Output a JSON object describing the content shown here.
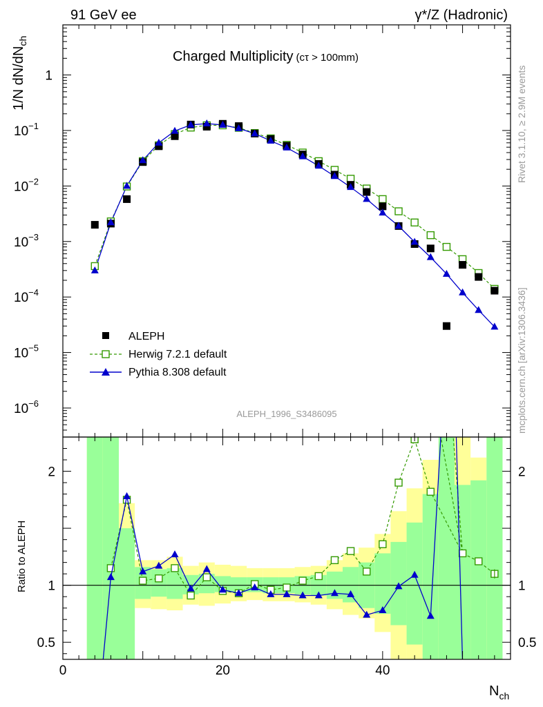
{
  "header": {
    "left": "91 GeV ee",
    "right": "γ*/Z (Hadronic)"
  },
  "side_labels": {
    "rivet": "Rivet 3.1.10, ≥ 2.9M events",
    "mcplots": "mcplots.cern.ch [arXiv:1306.3436]"
  },
  "chart_data": {
    "type": "scatter",
    "title": "Charged Multiplicity",
    "title_sub": "(cτ > 100mm)",
    "analysis_label": "ALEPH_1996_S3486095",
    "xlabel_main": "N",
    "xlabel_sub": "ch",
    "ylabel_main": "1/N dN/dN",
    "ylabel_sub": "ch",
    "ratio_ylabel": "Ratio to ALEPH",
    "xlim": [
      0,
      56
    ],
    "ylim": [
      3e-07,
      8
    ],
    "yscale": "log",
    "ratio_ylim": [
      0.35,
      2.3
    ],
    "x_ticks": [
      0,
      20,
      40
    ],
    "y_tick_labels": [
      {
        "exp": -6,
        "base": "10",
        "sup": "−6"
      },
      {
        "exp": -5,
        "base": "10",
        "sup": "−5"
      },
      {
        "exp": -4,
        "base": "10",
        "sup": "−4"
      },
      {
        "exp": -3,
        "base": "10",
        "sup": "−3"
      },
      {
        "exp": -2,
        "base": "10",
        "sup": "−2"
      },
      {
        "exp": -1,
        "base": "10",
        "sup": "−1"
      },
      {
        "exp": 0,
        "base": "1",
        "sup": ""
      }
    ],
    "ratio_ticks": [
      0.5,
      1,
      2
    ],
    "legend_placement": "lower-left",
    "series": [
      {
        "name": "ALEPH",
        "color": "#000000",
        "marker": "filled-square",
        "x": [
          4,
          6,
          8,
          10,
          12,
          14,
          16,
          18,
          20,
          22,
          24,
          26,
          28,
          30,
          32,
          34,
          36,
          38,
          40,
          42,
          44,
          46,
          48,
          50,
          52,
          54
        ],
        "y": [
          0.002,
          0.0021,
          0.0058,
          0.027,
          0.052,
          0.079,
          0.128,
          0.117,
          0.132,
          0.12,
          0.088,
          0.07,
          0.053,
          0.037,
          0.025,
          0.016,
          0.0105,
          0.0078,
          0.0043,
          0.0019,
          0.0009,
          0.00075,
          3e-05,
          0.00038,
          0.00023,
          0.00013
        ]
      },
      {
        "name": "Herwig 7.2.1 default",
        "color": "#339900",
        "marker": "open-square",
        "line": "dashed",
        "x": [
          4,
          6,
          8,
          10,
          12,
          14,
          16,
          18,
          20,
          22,
          24,
          26,
          28,
          30,
          32,
          34,
          36,
          38,
          40,
          42,
          44,
          46,
          48,
          50,
          52,
          54
        ],
        "y": [
          0.00036,
          0.0023,
          0.0098,
          0.028,
          0.054,
          0.086,
          0.113,
          0.124,
          0.124,
          0.112,
          0.09,
          0.072,
          0.055,
          0.04,
          0.028,
          0.0195,
          0.0135,
          0.009,
          0.0058,
          0.0035,
          0.0022,
          0.0013,
          0.0008,
          0.00048,
          0.00027,
          0.00014
        ]
      },
      {
        "name": "Pythia 8.308 default",
        "color": "#0000cc",
        "marker": "filled-triangle",
        "line": "solid",
        "x": [
          4,
          6,
          8,
          10,
          12,
          14,
          16,
          18,
          20,
          22,
          24,
          26,
          28,
          30,
          32,
          34,
          36,
          38,
          40,
          42,
          44,
          46,
          48,
          50,
          52,
          54
        ],
        "y": [
          0.0003,
          0.0022,
          0.01,
          0.029,
          0.06,
          0.098,
          0.126,
          0.133,
          0.126,
          0.109,
          0.088,
          0.065,
          0.049,
          0.034,
          0.023,
          0.015,
          0.0095,
          0.0058,
          0.0033,
          0.0019,
          0.00098,
          0.00052,
          0.00026,
          0.00012,
          5.8e-05,
          2.9e-05
        ]
      }
    ],
    "ratios": [
      {
        "name": "Herwig 7.2.1 default",
        "x": [
          6,
          8,
          10,
          12,
          14,
          16,
          18,
          20,
          22,
          24,
          26,
          28,
          30,
          32,
          34,
          36,
          38,
          40,
          42,
          44,
          46,
          50,
          52,
          54
        ],
        "y": [
          1.15,
          1.75,
          1.04,
          1.06,
          1.15,
          0.91,
          1.07,
          0.95,
          0.93,
          1.01,
          0.96,
          0.98,
          1.04,
          1.08,
          1.22,
          1.3,
          1.12,
          1.36,
          1.9,
          2.28,
          1.82,
          1.28,
          1.21,
          1.1
        ]
      },
      {
        "name": "Pythia 8.308 default",
        "x": [
          6,
          8,
          10,
          12,
          14,
          16,
          18,
          20,
          22,
          24,
          26,
          28,
          30,
          32,
          34,
          36,
          38,
          40,
          42,
          44,
          46
        ],
        "y": [
          1.07,
          1.78,
          1.12,
          1.17,
          1.27,
          0.97,
          1.14,
          0.96,
          0.93,
          0.98,
          0.92,
          0.92,
          0.91,
          0.91,
          0.93,
          0.92,
          0.74,
          0.78,
          0.99,
          1.09,
          0.73
        ]
      }
    ],
    "uncertainty_bands": {
      "inner_color": "#99ff99",
      "outer_color": "#ffff99",
      "bins": [
        {
          "x": [
            3,
            5
          ],
          "in": [
            0.3,
            2.4
          ],
          "out": [
            0.3,
            2.4
          ]
        },
        {
          "x": [
            5,
            7
          ],
          "in": [
            0.3,
            2.3
          ],
          "out": [
            0.3,
            2.4
          ]
        },
        {
          "x": [
            7,
            9
          ],
          "in": [
            0.3,
            1.5
          ],
          "out": [
            0.6,
            1.72
          ]
        },
        {
          "x": [
            9,
            11
          ],
          "in": [
            0.88,
            1.16
          ],
          "out": [
            0.8,
            1.22
          ]
        },
        {
          "x": [
            11,
            13
          ],
          "in": [
            0.9,
            1.14
          ],
          "out": [
            0.79,
            1.22
          ]
        },
        {
          "x": [
            13,
            15
          ],
          "in": [
            0.88,
            1.15
          ],
          "out": [
            0.78,
            1.25
          ]
        },
        {
          "x": [
            15,
            17
          ],
          "in": [
            0.92,
            1.09
          ],
          "out": [
            0.83,
            1.17
          ]
        },
        {
          "x": [
            17,
            19
          ],
          "in": [
            0.93,
            1.1
          ],
          "out": [
            0.82,
            1.2
          ]
        },
        {
          "x": [
            19,
            21
          ],
          "in": [
            0.94,
            1.08
          ],
          "out": [
            0.84,
            1.18
          ]
        },
        {
          "x": [
            21,
            23
          ],
          "in": [
            0.94,
            1.07
          ],
          "out": [
            0.86,
            1.17
          ]
        },
        {
          "x": [
            23,
            25
          ],
          "in": [
            0.94,
            1.07
          ],
          "out": [
            0.87,
            1.15
          ]
        },
        {
          "x": [
            25,
            27
          ],
          "in": [
            0.93,
            1.07
          ],
          "out": [
            0.86,
            1.15
          ]
        },
        {
          "x": [
            27,
            29
          ],
          "in": [
            0.93,
            1.07
          ],
          "out": [
            0.86,
            1.15
          ]
        },
        {
          "x": [
            29,
            31
          ],
          "in": [
            0.92,
            1.08
          ],
          "out": [
            0.85,
            1.16
          ]
        },
        {
          "x": [
            31,
            33
          ],
          "in": [
            0.91,
            1.09
          ],
          "out": [
            0.83,
            1.17
          ]
        },
        {
          "x": [
            33,
            35
          ],
          "in": [
            0.88,
            1.12
          ],
          "out": [
            0.79,
            1.22
          ]
        },
        {
          "x": [
            35,
            37
          ],
          "in": [
            0.85,
            1.16
          ],
          "out": [
            0.74,
            1.28
          ]
        },
        {
          "x": [
            37,
            39
          ],
          "in": [
            0.8,
            1.2
          ],
          "out": [
            0.71,
            1.33
          ]
        },
        {
          "x": [
            39,
            41
          ],
          "in": [
            0.75,
            1.28
          ],
          "out": [
            0.59,
            1.45
          ]
        },
        {
          "x": [
            41,
            43
          ],
          "in": [
            0.65,
            1.38
          ],
          "out": [
            0.3,
            1.65
          ]
        },
        {
          "x": [
            43,
            45
          ],
          "in": [
            0.48,
            1.55
          ],
          "out": [
            0.3,
            1.85
          ]
        },
        {
          "x": [
            45,
            47
          ],
          "in": [
            0.3,
            1.8
          ],
          "out": [
            0.3,
            2.1
          ]
        },
        {
          "x": [
            47,
            49
          ],
          "in": [
            0.3,
            2.4
          ],
          "out": [
            0.3,
            2.4
          ]
        },
        {
          "x": [
            49,
            51
          ],
          "in": [
            0.3,
            1.88
          ],
          "out": [
            0.3,
            2.4
          ]
        },
        {
          "x": [
            51,
            53
          ],
          "in": [
            0.3,
            1.92
          ],
          "out": [
            0.3,
            2.12
          ]
        },
        {
          "x": [
            53,
            55
          ],
          "in": [
            0.3,
            2.4
          ],
          "out": [
            0.3,
            2.4
          ]
        }
      ]
    }
  }
}
